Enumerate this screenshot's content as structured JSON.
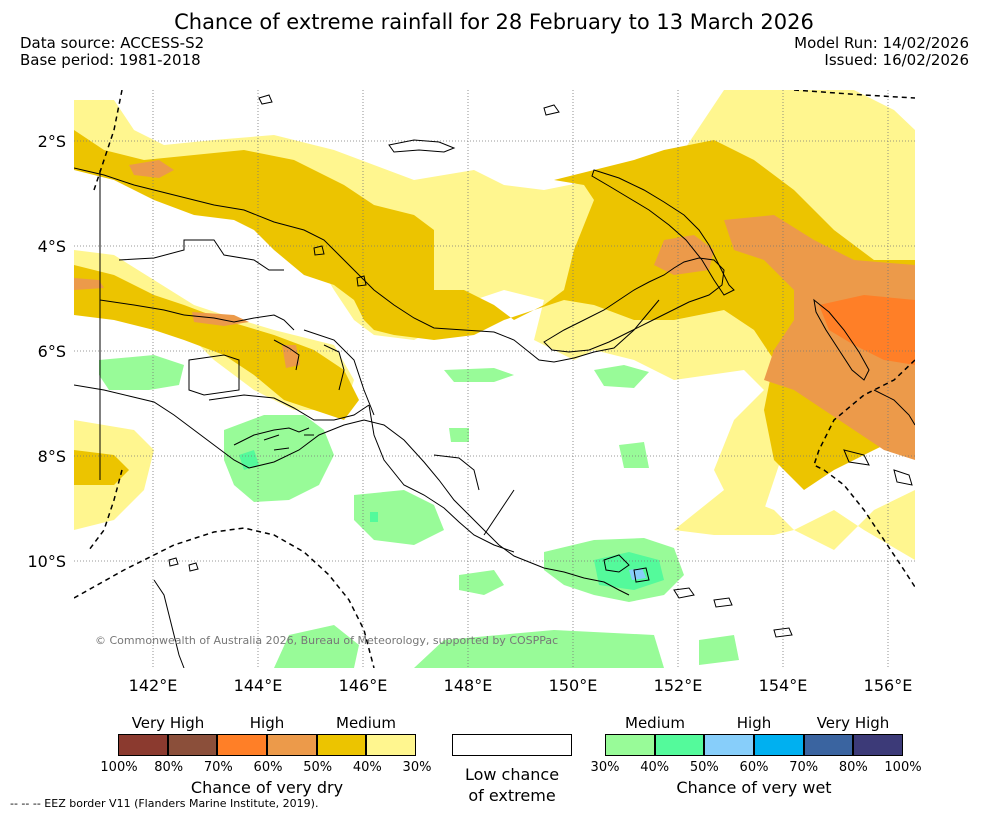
{
  "title": "Chance of extreme rainfall for 28 February to 13 March 2026",
  "meta": {
    "data_source": "Data source: ACCESS-S2",
    "base_period": "Base period: 1981-2018",
    "model_run": "Model Run: 14/02/2026",
    "issued": "Issued: 16/02/2026"
  },
  "map": {
    "lat_ticks": [
      "2°S",
      "4°S",
      "6°S",
      "8°S",
      "10°S"
    ],
    "lon_ticks": [
      "142°E",
      "144°E",
      "146°E",
      "148°E",
      "150°E",
      "152°E",
      "154°E",
      "156°E"
    ],
    "copyright": "© Commonwealth of Australia 2026, Bureau of Meteorology, supported by COSPPac"
  },
  "legend": {
    "dry": {
      "categories": [
        "Very High",
        "High",
        "Medium"
      ],
      "colors": [
        "#8b3a2f",
        "#8b4f3a",
        "#ff7f27",
        "#ec9a4a",
        "#ecc400",
        "#fff68f"
      ],
      "numbers": [
        "100%",
        "80%",
        "70%",
        "60%",
        "50%",
        "40%",
        "30%"
      ],
      "title": "Chance of very dry"
    },
    "low": {
      "color": "#ffffff",
      "title_line1": "Low chance",
      "title_line2": "of extreme"
    },
    "wet": {
      "categories": [
        "Medium",
        "High",
        "Very High"
      ],
      "colors": [
        "#98fb98",
        "#54fa9b",
        "#87cefa",
        "#00b0f0",
        "#3a64a0",
        "#3c3a78"
      ],
      "numbers": [
        "30%",
        "40%",
        "50%",
        "60%",
        "70%",
        "80%",
        "100%"
      ],
      "title": "Chance of very wet"
    }
  },
  "eez_note": "--  --  -- EEZ border V11 (Flanders Marine Institute, 2019)."
}
